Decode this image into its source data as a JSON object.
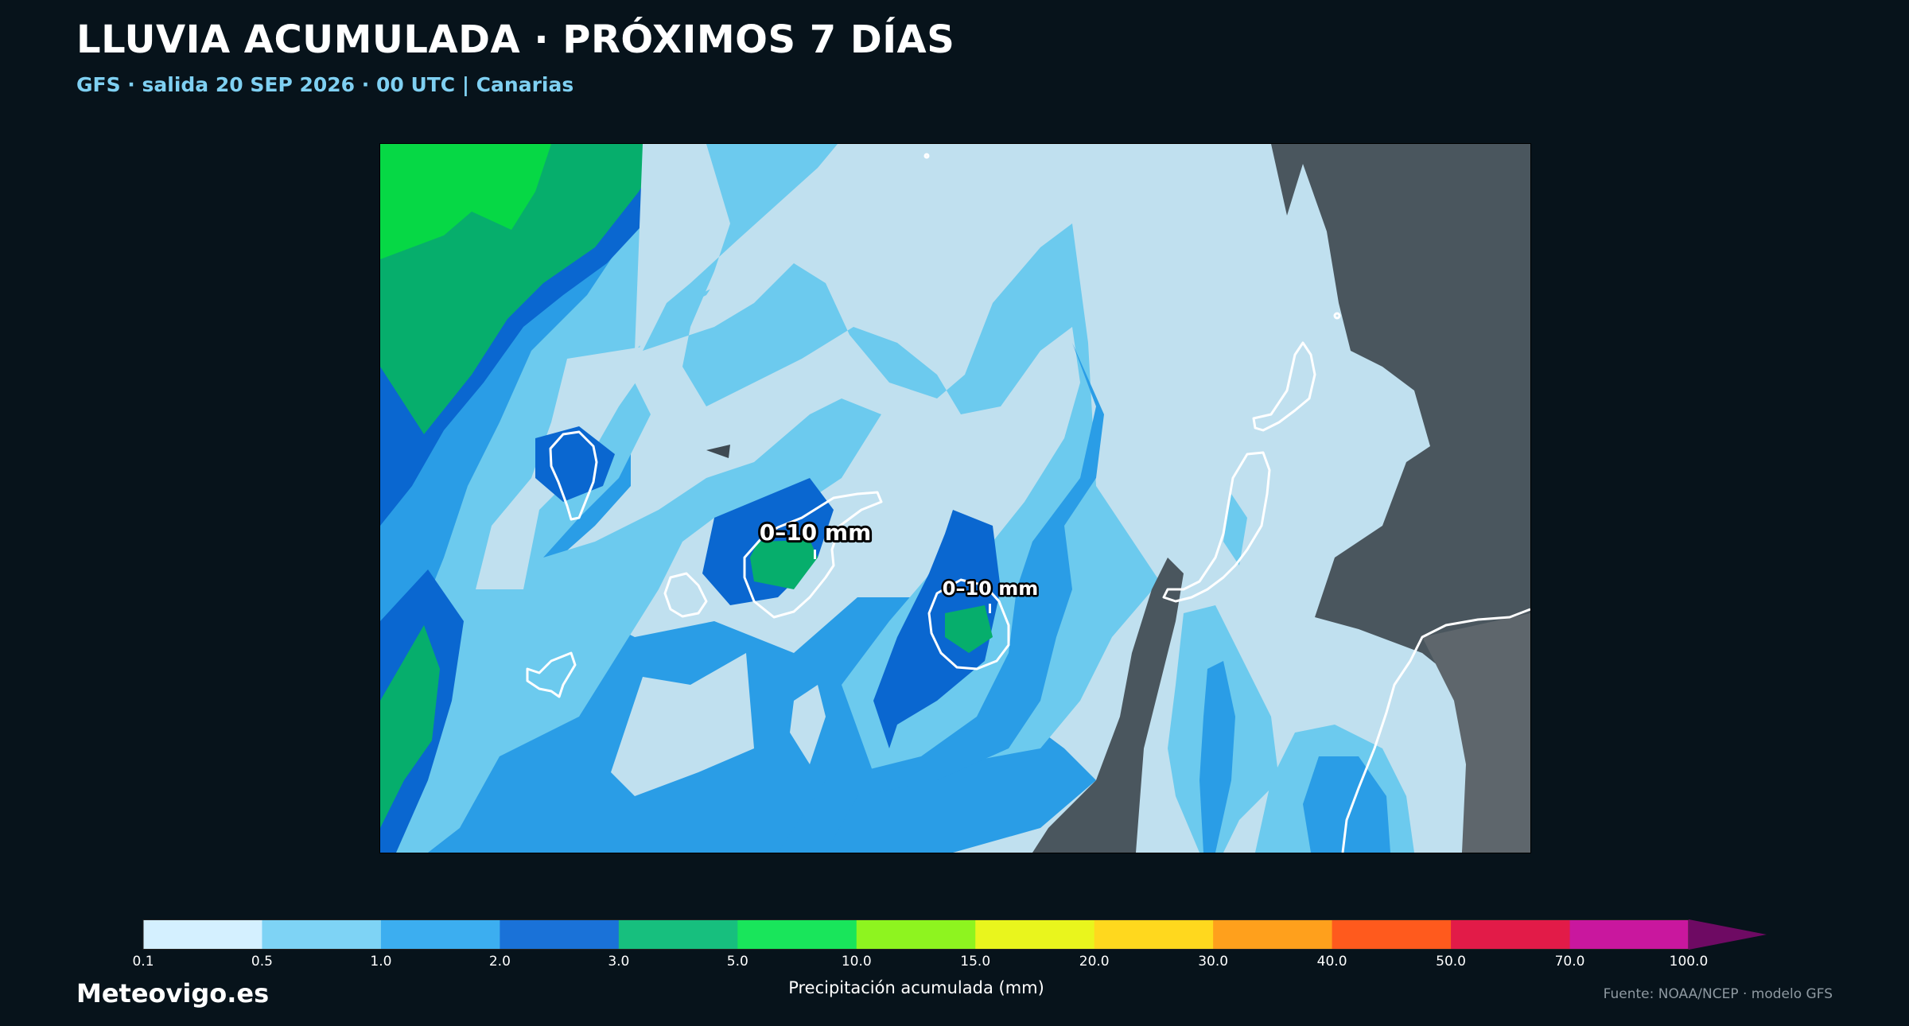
{
  "header": {
    "title": "LLUVIA ACUMULADA · PRÓXIMOS 7 DÍAS",
    "subtitle": "GFS · salida 20 SEP 2026 · 00 UTC  |  Canarias"
  },
  "map": {
    "region": "Canarias",
    "labels": [
      {
        "text": "0–10 mm"
      },
      {
        "text": "0–10 mm"
      }
    ]
  },
  "colorbar": {
    "label": "Precipitación acumulada (mm)",
    "ticks": [
      "0.1",
      "0.5",
      "1.0",
      "2.0",
      "3.0",
      "5.0",
      "10.0",
      "15.0",
      "20.0",
      "30.0",
      "40.0",
      "50.0",
      "70.0",
      "100.0"
    ],
    "colors": [
      "#d4f0ff",
      "#7ed3f5",
      "#3caef0",
      "#1a72d8",
      "#17bf7e",
      "#19e55b",
      "#8ef41f",
      "#e9f51d",
      "#ffd81e",
      "#ffa01c",
      "#ff5a1d",
      "#e21b48",
      "#c9179e",
      "#6e0a63"
    ],
    "extend": "max"
  },
  "footer": {
    "brand": "Meteovigo.es",
    "source": "Fuente: NOAA/NCEP · modelo GFS"
  }
}
